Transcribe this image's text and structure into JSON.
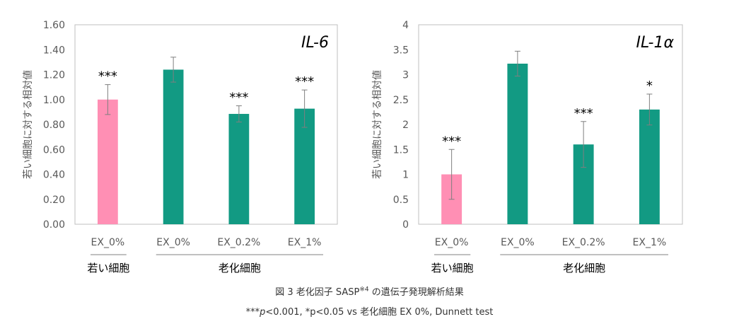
{
  "chart_data": [
    {
      "type": "bar",
      "title": "IL-6",
      "ylabel": "若い細胞に対する相対値",
      "ylim": [
        0,
        1.6
      ],
      "yticks": [
        "0.00",
        "0.20",
        "0.40",
        "0.60",
        "0.80",
        "1.00",
        "1.20",
        "1.40",
        "1.60"
      ],
      "categories": [
        "EX_0%",
        "EX_0%",
        "EX_0.2%",
        "EX_1%"
      ],
      "values": [
        1.0,
        1.24,
        0.885,
        0.927
      ],
      "errors": [
        0.12,
        0.1,
        0.065,
        0.15
      ],
      "significance": [
        "***",
        "",
        "***",
        "***"
      ],
      "colors": [
        "#FF8FB4",
        "#129A83",
        "#129A83",
        "#129A83"
      ],
      "groups": [
        {
          "label": "若い細胞",
          "from": 0,
          "to": 0
        },
        {
          "label": "老化細胞",
          "from": 1,
          "to": 3
        }
      ]
    },
    {
      "type": "bar",
      "title": "IL-1α",
      "ylabel": "若い細胞に対する相対値",
      "ylim": [
        0,
        4
      ],
      "yticks": [
        "0",
        "0.5",
        "1",
        "1.5",
        "2",
        "2.5",
        "3",
        "3.5",
        "4"
      ],
      "categories": [
        "EX_0%",
        "EX_0%",
        "EX_0.2%",
        "EX_1%"
      ],
      "values": [
        1.0,
        3.22,
        1.6,
        2.3
      ],
      "errors": [
        0.5,
        0.25,
        0.46,
        0.31
      ],
      "significance": [
        "***",
        "",
        "***",
        "*"
      ],
      "colors": [
        "#FF8FB4",
        "#129A83",
        "#129A83",
        "#129A83"
      ],
      "groups": [
        {
          "label": "若い細胞",
          "from": 0,
          "to": 0
        },
        {
          "label": "老化細胞",
          "from": 1,
          "to": 3
        }
      ]
    }
  ],
  "caption": {
    "line1_main": "図 3 老化因子 SASP",
    "line1_sup": "※4",
    "line1_rest": " の遺伝子発現解析結果",
    "line2_stars": "***",
    "line2_p": "p",
    "line2_rest": "<0.001, *p<0.05 vs 老化細胞 EX 0%, Dunnett test"
  }
}
